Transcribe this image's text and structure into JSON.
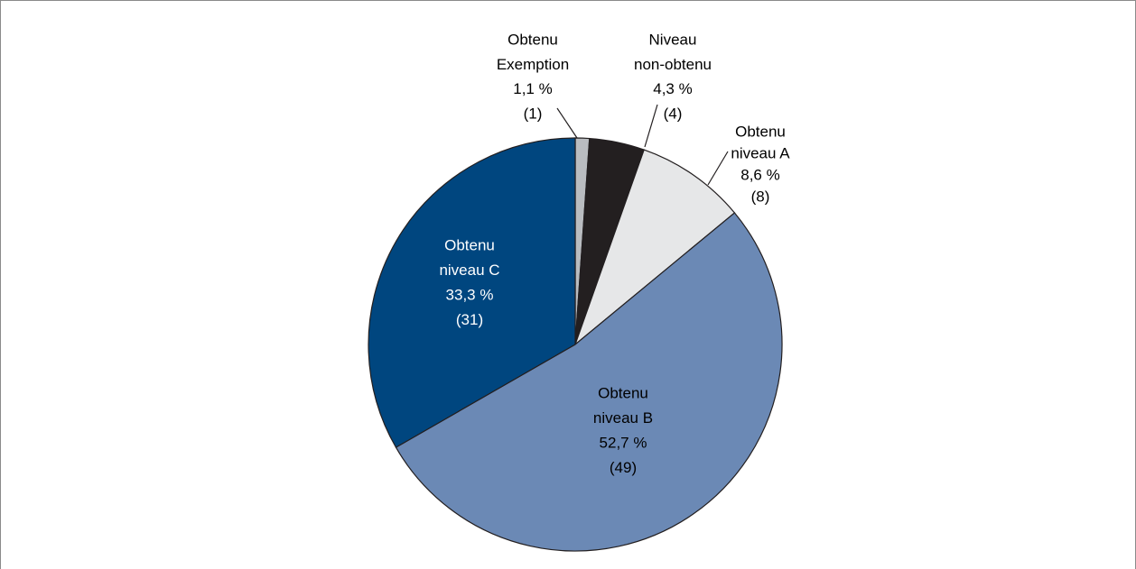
{
  "chart_data": {
    "type": "pie",
    "labels": [
      [
        "Obtenu",
        "Exemption"
      ],
      [
        "Niveau",
        "non-obtenu"
      ],
      [
        "Obtenu",
        "niveau A"
      ],
      [
        "Obtenu",
        "niveau B"
      ],
      [
        "Obtenu",
        "niveau C"
      ]
    ],
    "values": [
      1.1,
      4.3,
      8.6,
      52.7,
      33.3
    ],
    "value_labels": [
      "1,1 %",
      "4,3 %",
      "8,6 %",
      "52,7 %",
      "33,3 %"
    ],
    "counts": [
      1,
      4,
      8,
      49,
      31
    ],
    "count_labels": [
      "(1)",
      "(4)",
      "(8)",
      "(49)",
      "(31)"
    ],
    "colors": [
      "#b9bcc0",
      "#231f20",
      "#e6e7e8",
      "#6b89b5",
      "#00467f"
    ]
  }
}
